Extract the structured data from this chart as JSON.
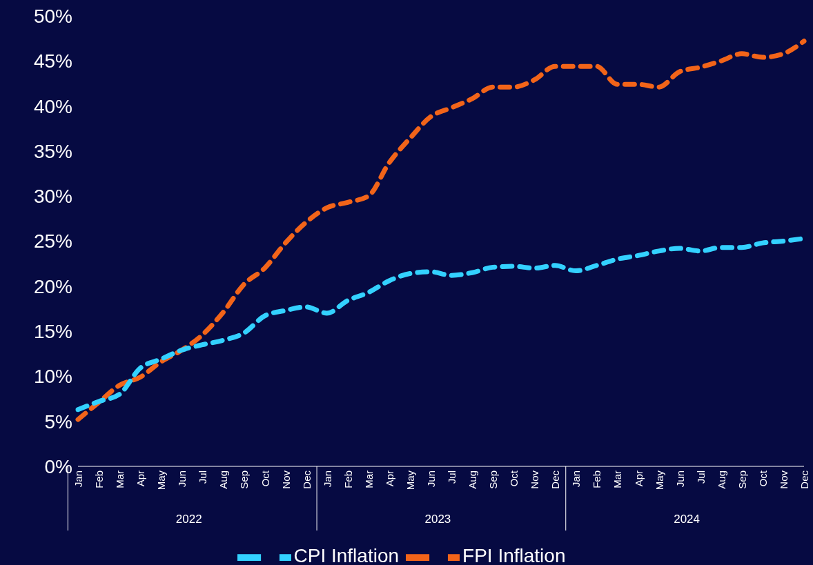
{
  "chart_data": {
    "type": "line",
    "categories": [
      "Jan",
      "Feb",
      "Mar",
      "Apr",
      "May",
      "Jun",
      "Jul",
      "Aug",
      "Sep",
      "Oct",
      "Nov",
      "Dec",
      "Jan",
      "Feb",
      "Mar",
      "Apr",
      "May",
      "Jun",
      "Jul",
      "Aug",
      "Sep",
      "Oct",
      "Nov",
      "Dec",
      "Jan",
      "Feb",
      "Mar",
      "Apr",
      "May",
      "Jun",
      "Jul",
      "Aug",
      "Sep",
      "Oct",
      "Nov",
      "Dec"
    ],
    "annotations": [
      "2022",
      "2023",
      "2024"
    ],
    "series": [
      {
        "name": "FPI Inflation",
        "color": "#f26419",
        "values": [
          5.2,
          7.1,
          9.0,
          9.9,
          11.6,
          12.9,
          14.6,
          17.1,
          20.2,
          22.0,
          24.8,
          27.1,
          28.7,
          29.3,
          30.0,
          33.7,
          36.4,
          38.8,
          39.8,
          40.8,
          42.1,
          42.1,
          42.9,
          44.4,
          44.4,
          44.4,
          42.4,
          42.4,
          42.1,
          43.8,
          44.3,
          45.0,
          45.8,
          45.4,
          45.8,
          47.2
        ]
      },
      {
        "name": "CPI Inflation",
        "color": "#33d1ff",
        "values": [
          6.3,
          7.2,
          8.0,
          10.9,
          11.9,
          12.9,
          13.5,
          14.0,
          14.8,
          16.7,
          17.3,
          17.7,
          17.0,
          18.4,
          19.3,
          20.6,
          21.4,
          21.6,
          21.2,
          21.5,
          22.1,
          22.2,
          22.0,
          22.3,
          21.7,
          22.3,
          23.0,
          23.4,
          23.9,
          24.2,
          23.9,
          24.3,
          24.3,
          24.8,
          25.0,
          25.3
        ]
      }
    ],
    "ylim": [
      0,
      50
    ],
    "yticks": [
      {
        "value": 0,
        "label": "0%"
      },
      {
        "value": 5,
        "label": "5%"
      },
      {
        "value": 10,
        "label": "10%"
      },
      {
        "value": 15,
        "label": "15%"
      },
      {
        "value": 20,
        "label": "20%"
      },
      {
        "value": 25,
        "label": "25%"
      },
      {
        "value": 30,
        "label": "30%"
      },
      {
        "value": 35,
        "label": "35%"
      },
      {
        "value": 40,
        "label": "40%"
      },
      {
        "value": 45,
        "label": "45%"
      },
      {
        "value": 50,
        "label": "50%"
      }
    ],
    "grid": false,
    "legend": "bottom",
    "line_style": "dashed",
    "marker": "none"
  }
}
